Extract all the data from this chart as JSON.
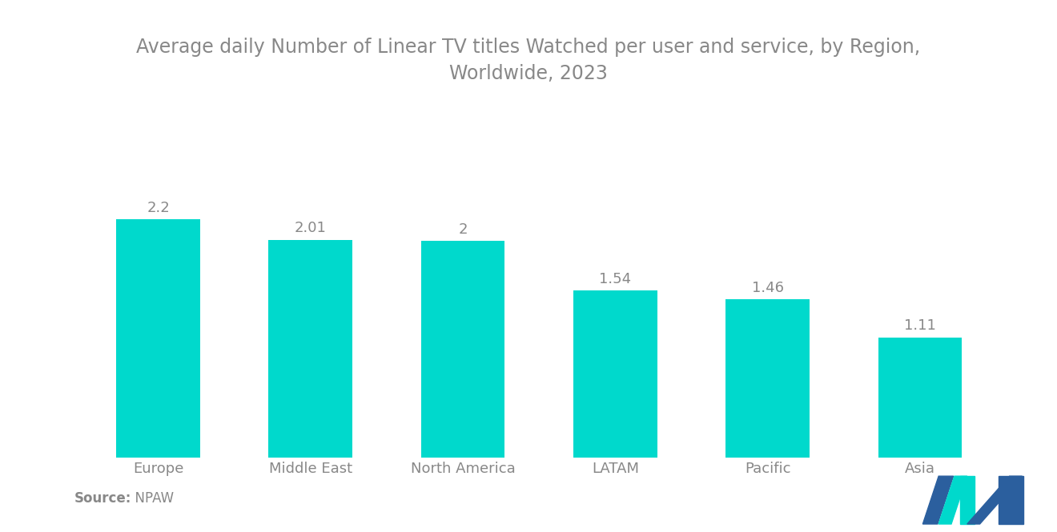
{
  "title": "Average daily Number of Linear TV titles Watched per user and service, by Region,\nWorldwide, 2023",
  "categories": [
    "Europe",
    "Middle East",
    "North America",
    "LATAM",
    "Pacific",
    "Asia"
  ],
  "values": [
    2.2,
    2.01,
    2.0,
    1.54,
    1.46,
    1.11
  ],
  "bar_color": "#00D9CC",
  "bar_labels": [
    "2.2",
    "2.01",
    "2",
    "1.54",
    "1.46",
    "1.11"
  ],
  "source_label": "Source:",
  "source_value": "  NPAW",
  "background_color": "#ffffff",
  "title_color": "#888888",
  "label_color": "#888888",
  "tick_color": "#888888",
  "title_fontsize": 17,
  "label_fontsize": 13,
  "bar_label_fontsize": 13,
  "source_fontsize": 12,
  "ylim": [
    0,
    2.85
  ],
  "bar_width": 0.55,
  "logo_blue": "#2B5F9E",
  "logo_teal": "#00D9CC"
}
